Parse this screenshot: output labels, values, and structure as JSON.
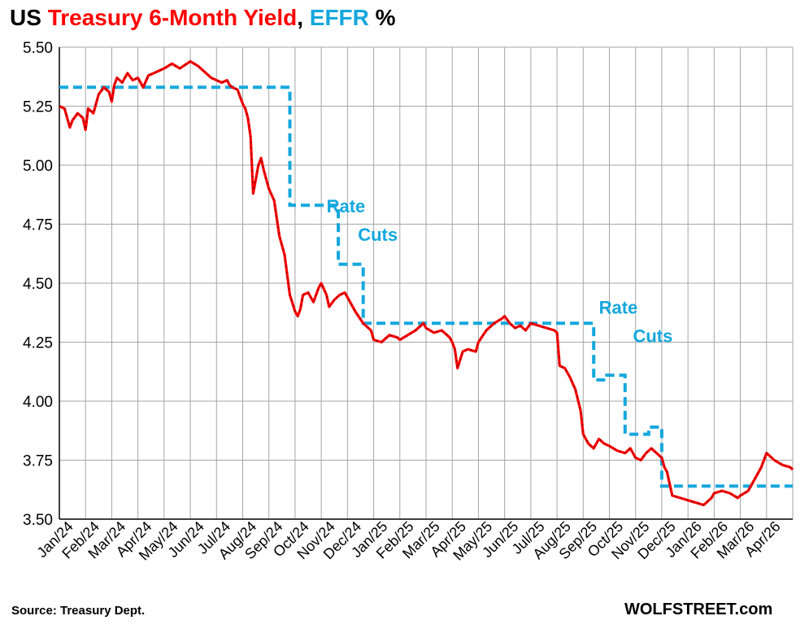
{
  "chart_data": {
    "type": "line",
    "title": {
      "part1": "US ",
      "part2": "Treasury 6-Month Yield",
      "part3": ", ",
      "part4": "EFFR",
      "part5": " %"
    },
    "colors": {
      "yield": "#ff0000",
      "effr": "#14a7dd",
      "grid": "#a6a6a6",
      "axis": "#000000"
    },
    "ylim": [
      3.5,
      5.5
    ],
    "y_ticks": [
      "3.50",
      "3.75",
      "4.00",
      "4.25",
      "4.50",
      "4.75",
      "5.00",
      "5.25",
      "5.50"
    ],
    "x_labels": [
      "Jan/24",
      "Feb/24",
      "Mar/24",
      "Apr/24",
      "May/24",
      "Jun/24",
      "Jul/24",
      "Aug/24",
      "Sep/24",
      "Oct/24",
      "Nov/24",
      "Dec/24",
      "Jan/25",
      "Feb/25",
      "Mar/25",
      "Apr/25",
      "May/25",
      "Jun/25",
      "Jul/25",
      "Aug/25",
      "Sep/25",
      "Oct/25",
      "Nov/25",
      "Dec/25",
      "Jan/26",
      "Feb/26",
      "Mar/26",
      "Apr/26"
    ],
    "x_unit": "months since Jan 2024",
    "x_max": 28,
    "series": [
      {
        "name": "US Treasury 6-Month Yield",
        "x": [
          0,
          0.2,
          0.4,
          0.5,
          0.7,
          0.9,
          1,
          1.1,
          1.3,
          1.5,
          1.7,
          1.9,
          2,
          2.1,
          2.2,
          2.4,
          2.6,
          2.8,
          3,
          3.2,
          3.4,
          3.6,
          3.8,
          4,
          4.3,
          4.6,
          5,
          5.3,
          5.6,
          5.8,
          6,
          6.2,
          6.4,
          6.5,
          6.6,
          6.8,
          7,
          7.1,
          7.2,
          7.3,
          7.4,
          7.6,
          7.7,
          7.8,
          8,
          8.2,
          8.4,
          8.6,
          8.8,
          9,
          9.1,
          9.2,
          9.3,
          9.5,
          9.7,
          9.9,
          10,
          10.2,
          10.3,
          10.5,
          10.7,
          10.9,
          11,
          11.3,
          11.6,
          11.9,
          12,
          12.3,
          12.6,
          12.9,
          13,
          13.3,
          13.6,
          13.9,
          14,
          14.3,
          14.6,
          14.9,
          15,
          15.1,
          15.2,
          15.4,
          15.6,
          15.9,
          16,
          16.3,
          16.6,
          16.9,
          17,
          17.2,
          17.4,
          17.6,
          17.8,
          18,
          18.3,
          18.6,
          18.9,
          19,
          19.1,
          19.3,
          19.5,
          19.7,
          19.9,
          20,
          20.2,
          20.4,
          20.6,
          20.8,
          21,
          21.3,
          21.6,
          21.8,
          22,
          22.2,
          22.4,
          22.6,
          22.8,
          23,
          23.1,
          23.2,
          23.4,
          23.7,
          24,
          24.3,
          24.6,
          24.9,
          25,
          25.3,
          25.6,
          25.9,
          26,
          26.3,
          26.6,
          26.8,
          27,
          27.3,
          27.6,
          27.9,
          28
        ],
        "values": [
          5.25,
          5.24,
          5.16,
          5.19,
          5.22,
          5.2,
          5.15,
          5.24,
          5.22,
          5.3,
          5.33,
          5.31,
          5.27,
          5.34,
          5.37,
          5.35,
          5.39,
          5.36,
          5.37,
          5.33,
          5.38,
          5.39,
          5.4,
          5.41,
          5.43,
          5.41,
          5.44,
          5.42,
          5.39,
          5.37,
          5.36,
          5.35,
          5.36,
          5.34,
          5.33,
          5.32,
          5.26,
          5.24,
          5.2,
          5.12,
          4.88,
          5.0,
          5.03,
          4.98,
          4.9,
          4.85,
          4.7,
          4.62,
          4.45,
          4.38,
          4.36,
          4.39,
          4.45,
          4.46,
          4.42,
          4.48,
          4.5,
          4.45,
          4.4,
          4.43,
          4.45,
          4.46,
          4.44,
          4.38,
          4.33,
          4.3,
          4.26,
          4.25,
          4.28,
          4.27,
          4.26,
          4.28,
          4.3,
          4.33,
          4.31,
          4.29,
          4.3,
          4.27,
          4.25,
          4.22,
          4.14,
          4.21,
          4.22,
          4.21,
          4.25,
          4.3,
          4.33,
          4.35,
          4.36,
          4.33,
          4.31,
          4.32,
          4.3,
          4.33,
          4.32,
          4.31,
          4.3,
          4.29,
          4.15,
          4.14,
          4.1,
          4.05,
          3.96,
          3.86,
          3.82,
          3.8,
          3.84,
          3.82,
          3.81,
          3.79,
          3.78,
          3.8,
          3.76,
          3.75,
          3.78,
          3.8,
          3.78,
          3.76,
          3.72,
          3.7,
          3.6,
          3.59,
          3.58,
          3.57,
          3.56,
          3.59,
          3.61,
          3.62,
          3.61,
          3.59,
          3.6,
          3.62,
          3.68,
          3.72,
          3.78,
          3.75,
          3.73,
          3.72,
          3.71
        ]
      },
      {
        "name": "EFFR",
        "style": "dashed-step",
        "x": [
          0,
          8.8,
          8.8,
          10,
          10,
          10.65,
          10.65,
          11.6,
          11.6,
          20.4,
          20.4,
          20.9,
          20.9,
          21.6,
          21.6,
          22.5,
          22.5,
          23,
          23,
          28
        ],
        "values": [
          5.33,
          5.33,
          4.83,
          4.83,
          4.83,
          4.83,
          4.58,
          4.58,
          4.33,
          4.33,
          4.09,
          4.09,
          4.11,
          4.11,
          3.86,
          3.86,
          3.89,
          3.89,
          3.64,
          3.64
        ]
      }
    ],
    "annotations": [
      {
        "text": "Rate",
        "x": 10.2,
        "y": 4.8
      },
      {
        "text": "Cuts",
        "x": 11.4,
        "y": 4.68
      },
      {
        "text": "Rate",
        "x": 20.6,
        "y": 4.37
      },
      {
        "text": "Cuts",
        "x": 21.9,
        "y": 4.25
      }
    ]
  },
  "footer": {
    "source": "Source: Treasury Dept.",
    "brand": "WOLFSTREET.com"
  }
}
